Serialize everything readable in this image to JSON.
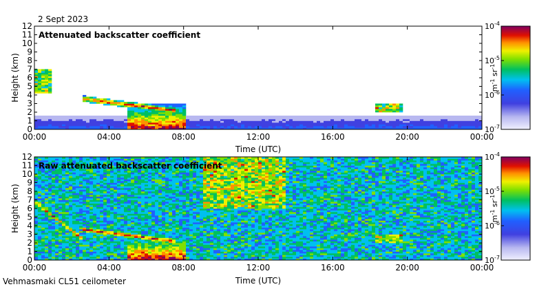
{
  "date_label": "2 Sept 2023",
  "footer_label": "Vehmasmaki CL51 ceilometer",
  "chart_data": [
    {
      "type": "heatmap",
      "title": "Attenuated backscatter coefficient",
      "xlabel": "Time (UTC)",
      "ylabel": "Height (km)",
      "x_ticks": [
        "00:00",
        "04:00",
        "08:00",
        "12:00",
        "16:00",
        "20:00",
        "00:00"
      ],
      "x_tick_hours": [
        0,
        4,
        8,
        12,
        16,
        20,
        24
      ],
      "xlim_hours": [
        0,
        24
      ],
      "y_ticks": [
        0,
        1,
        2,
        3,
        4,
        5,
        6,
        7,
        8,
        9,
        10,
        11,
        12
      ],
      "ylim_km": [
        0,
        12
      ],
      "colorbar": {
        "scale": "log",
        "range": [
          1e-07,
          0.0001
        ],
        "ticks": [
          "10-7",
          "10-6",
          "10-5",
          "10-4"
        ],
        "label": "m-1 sr-1"
      },
      "features": [
        {
          "name": "elevated layer",
          "start_h": 0.0,
          "end_h": 1.0,
          "bottom_km": 4.2,
          "top_km": 7.0,
          "intensity": 0.75
        },
        {
          "name": "descending cloud base",
          "start_h": 2.5,
          "end_h": 7.5,
          "base_start_km": 3.6,
          "base_end_km": 2.2,
          "intensity": 0.9
        },
        {
          "name": "low boundary layer",
          "start_h": 0.0,
          "end_h": 24.0,
          "top_km": 1.5,
          "intensity": 0.3
        },
        {
          "name": "precipitation",
          "start_h": 5.0,
          "end_h": 8.2,
          "top_km": 3.0,
          "intensity": 0.95
        },
        {
          "name": "cloud",
          "start_h": 18.3,
          "end_h": 19.8,
          "bottom_km": 2.0,
          "top_km": 3.0,
          "intensity": 0.8
        }
      ]
    },
    {
      "type": "heatmap",
      "title": "Raw attenuated backscatter coefficient",
      "xlabel": "Time (UTC)",
      "ylabel": "Height (km)",
      "x_ticks": [
        "00:00",
        "04:00",
        "08:00",
        "12:00",
        "16:00",
        "20:00",
        "00:00"
      ],
      "x_tick_hours": [
        0,
        4,
        8,
        12,
        16,
        20,
        24
      ],
      "xlim_hours": [
        0,
        24
      ],
      "y_ticks": [
        0,
        1,
        2,
        3,
        4,
        5,
        6,
        7,
        8,
        9,
        10,
        11,
        12
      ],
      "ylim_km": [
        0,
        12
      ],
      "colorbar": {
        "scale": "log",
        "range": [
          1e-07,
          0.0001
        ],
        "ticks": [
          "10-7",
          "10-6",
          "10-5",
          "10-4"
        ],
        "label": "m-1 sr-1"
      },
      "features": [
        {
          "name": "noise background",
          "start_h": 0.0,
          "end_h": 24.0,
          "bottom_km": 0.0,
          "top_km": 12.0,
          "intensity": 0.55
        },
        {
          "name": "elevated layer",
          "start_h": 0.0,
          "end_h": 2.5,
          "base_start_km": 6.8,
          "base_end_km": 2.6,
          "intensity": 0.85
        },
        {
          "name": "descending cloud base",
          "start_h": 2.5,
          "end_h": 7.5,
          "base_start_km": 3.6,
          "base_end_km": 2.2,
          "intensity": 0.9
        },
        {
          "name": "precipitation",
          "start_h": 5.0,
          "end_h": 8.2,
          "top_km": 3.0,
          "intensity": 0.95
        },
        {
          "name": "high noise region",
          "start_h": 9.0,
          "end_h": 13.5,
          "bottom_km": 6.0,
          "top_km": 12.0,
          "intensity": 0.8
        },
        {
          "name": "cloud",
          "start_h": 18.3,
          "end_h": 19.8,
          "bottom_km": 2.0,
          "top_km": 3.0,
          "intensity": 0.8
        }
      ]
    }
  ]
}
